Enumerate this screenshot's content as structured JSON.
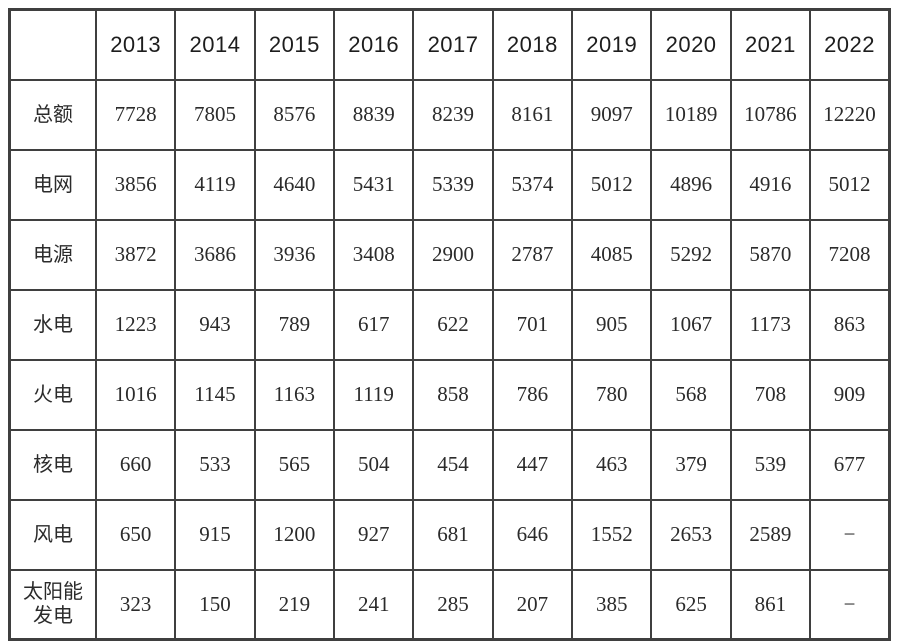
{
  "table": {
    "columns": [
      "",
      "2013",
      "2014",
      "2015",
      "2016",
      "2017",
      "2018",
      "2019",
      "2020",
      "2021",
      "2022"
    ],
    "rows": [
      {
        "label": "总额",
        "values": [
          "7728",
          "7805",
          "8576",
          "8839",
          "8239",
          "8161",
          "9097",
          "10189",
          "10786",
          "12220"
        ]
      },
      {
        "label": "电网",
        "values": [
          "3856",
          "4119",
          "4640",
          "5431",
          "5339",
          "5374",
          "5012",
          "4896",
          "4916",
          "5012"
        ]
      },
      {
        "label": "电源",
        "values": [
          "3872",
          "3686",
          "3936",
          "3408",
          "2900",
          "2787",
          "4085",
          "5292",
          "5870",
          "7208"
        ]
      },
      {
        "label": "水电",
        "values": [
          "1223",
          "943",
          "789",
          "617",
          "622",
          "701",
          "905",
          "1067",
          "1173",
          "863"
        ]
      },
      {
        "label": "火电",
        "values": [
          "1016",
          "1145",
          "1163",
          "1119",
          "858",
          "786",
          "780",
          "568",
          "708",
          "909"
        ]
      },
      {
        "label": "核电",
        "values": [
          "660",
          "533",
          "565",
          "504",
          "454",
          "447",
          "463",
          "379",
          "539",
          "677"
        ]
      },
      {
        "label": "风电",
        "values": [
          "650",
          "915",
          "1200",
          "927",
          "681",
          "646",
          "1552",
          "2653",
          "2589",
          "−"
        ]
      },
      {
        "label": "太阳能发电",
        "values": [
          "323",
          "150",
          "219",
          "241",
          "285",
          "207",
          "385",
          "625",
          "861",
          "−"
        ]
      }
    ]
  },
  "chart_data": {
    "type": "table",
    "categories": [
      "2013",
      "2014",
      "2015",
      "2016",
      "2017",
      "2018",
      "2019",
      "2020",
      "2021",
      "2022"
    ],
    "series": [
      {
        "name": "总额",
        "values": [
          7728,
          7805,
          8576,
          8839,
          8239,
          8161,
          9097,
          10189,
          10786,
          12220
        ]
      },
      {
        "name": "电网",
        "values": [
          3856,
          4119,
          4640,
          5431,
          5339,
          5374,
          5012,
          4896,
          4916,
          5012
        ]
      },
      {
        "name": "电源",
        "values": [
          3872,
          3686,
          3936,
          3408,
          2900,
          2787,
          4085,
          5292,
          5870,
          7208
        ]
      },
      {
        "name": "水电",
        "values": [
          1223,
          943,
          789,
          617,
          622,
          701,
          905,
          1067,
          1173,
          863
        ]
      },
      {
        "name": "火电",
        "values": [
          1016,
          1145,
          1163,
          1119,
          858,
          786,
          780,
          568,
          708,
          909
        ]
      },
      {
        "name": "核电",
        "values": [
          660,
          533,
          565,
          504,
          454,
          447,
          463,
          379,
          539,
          677
        ]
      },
      {
        "name": "风电",
        "values": [
          650,
          915,
          1200,
          927,
          681,
          646,
          1552,
          2653,
          2589,
          null
        ]
      },
      {
        "name": "太阳能发电",
        "values": [
          323,
          150,
          219,
          241,
          285,
          207,
          385,
          625,
          861,
          null
        ]
      }
    ],
    "title": "",
    "xlabel": "",
    "ylabel": "",
    "missing_value_marker": "−",
    "grid": true,
    "colors": {
      "border": "#3f3f3f",
      "text": "#2b2b2b",
      "background": "#ffffff"
    }
  }
}
